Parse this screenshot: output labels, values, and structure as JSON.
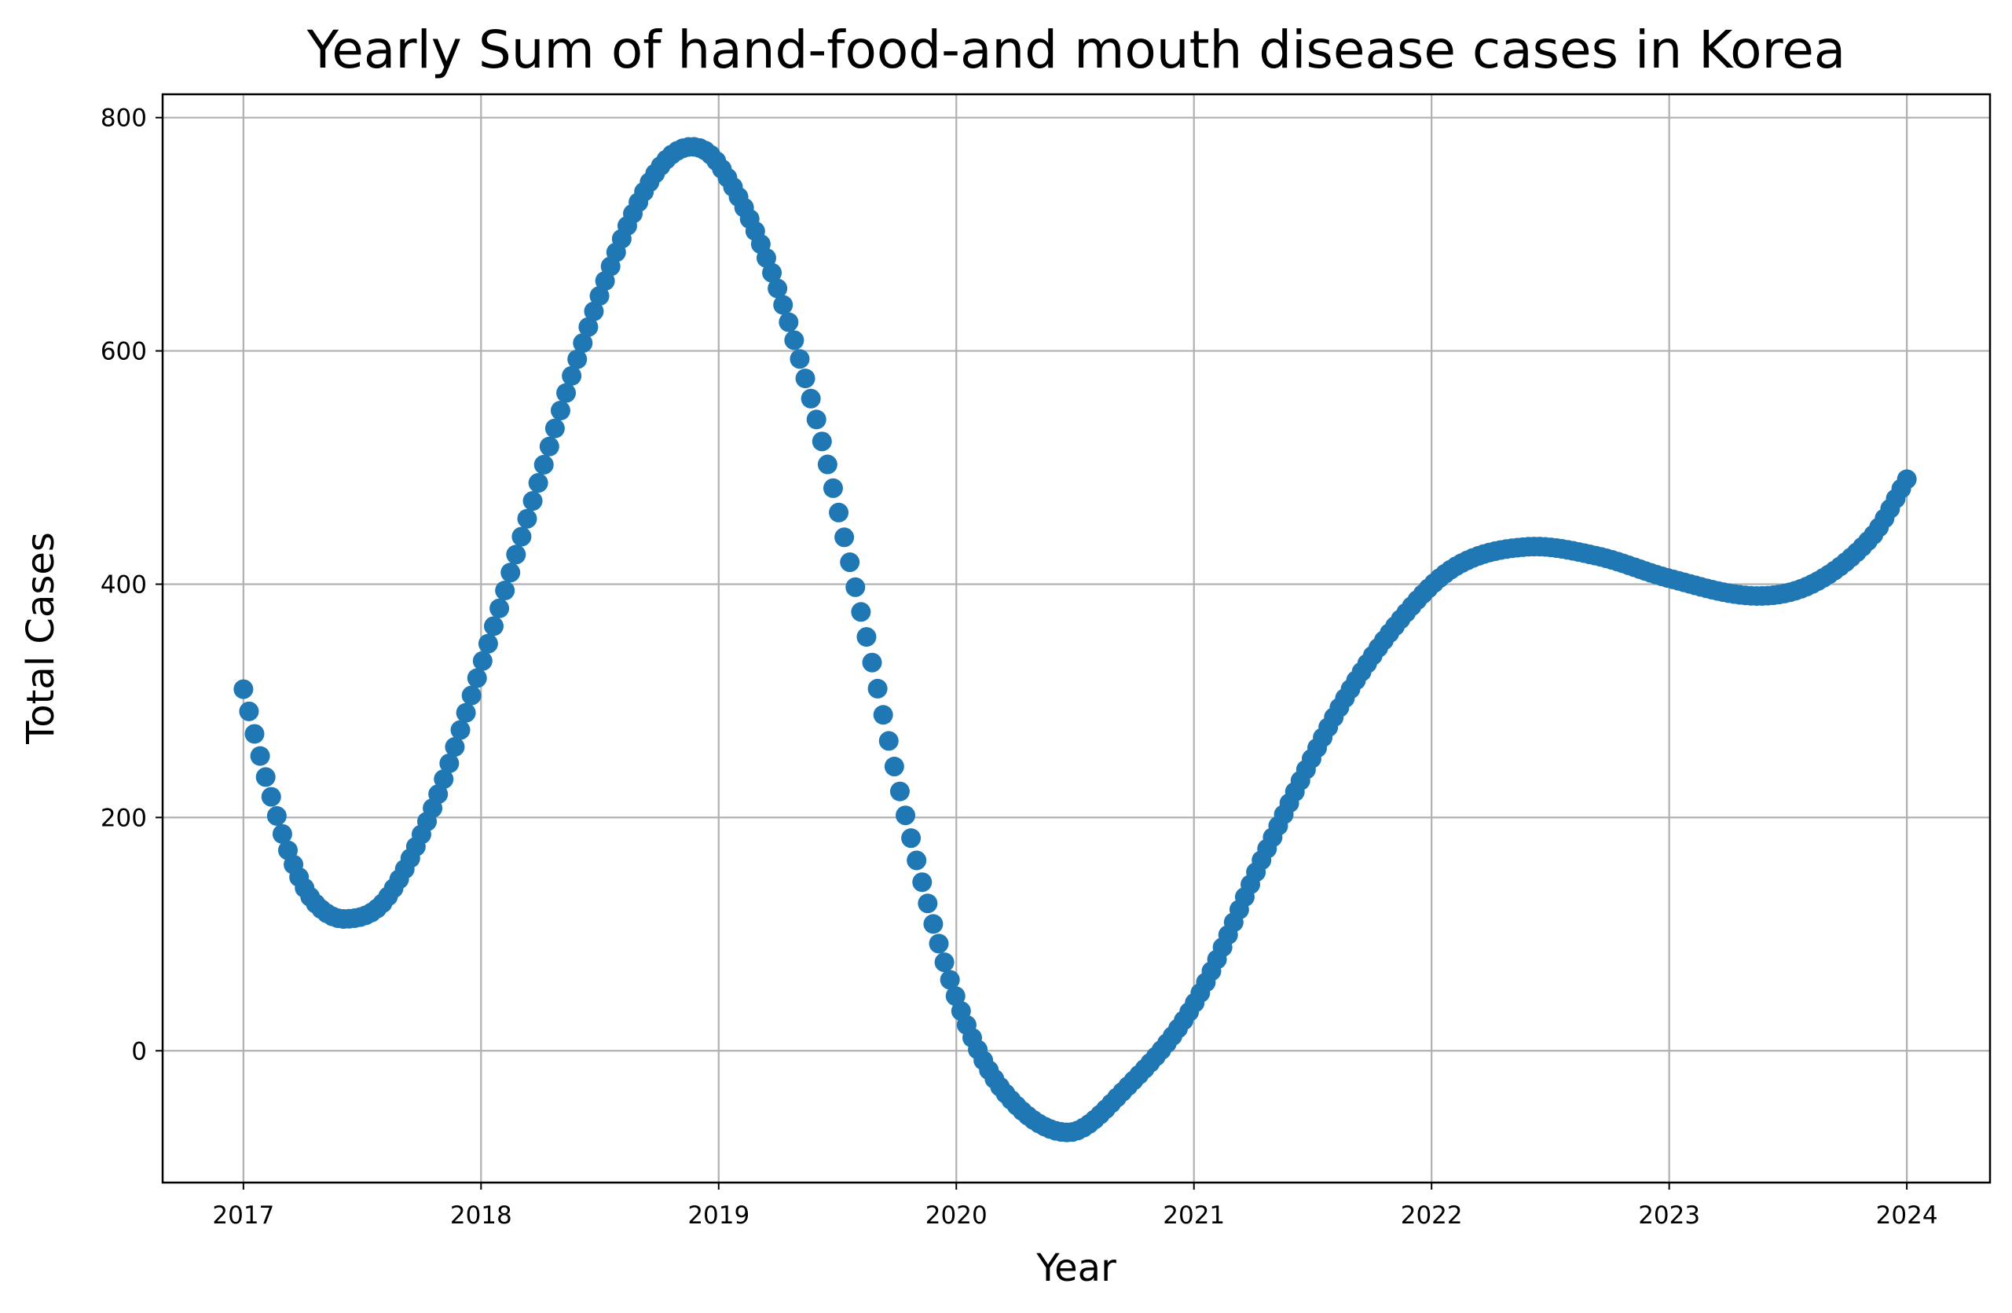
{
  "chart_data": {
    "type": "scatter",
    "title": "Yearly Sum of hand-food-and mouth disease cases in Korea",
    "xlabel": "Year",
    "ylabel": "Total Cases",
    "xlim": [
      2016.66,
      2024.35
    ],
    "ylim": [
      -113,
      820
    ],
    "x_ticks": [
      2017,
      2018,
      2019,
      2020,
      2021,
      2022,
      2023,
      2024
    ],
    "x_tick_labels": [
      "2017",
      "2018",
      "2019",
      "2020",
      "2021",
      "2022",
      "2023",
      "2024"
    ],
    "y_ticks": [
      0,
      200,
      400,
      600,
      800
    ],
    "y_tick_labels": [
      "0",
      "200",
      "400",
      "600",
      "800"
    ],
    "grid": true,
    "marker_color": "#1f77b4",
    "series": [
      {
        "x_start": 2017,
        "x_end": 2024,
        "point_count": 300,
        "curve_knots": [
          [
            2017.0,
            310
          ],
          [
            2017.1,
            230
          ],
          [
            2017.2,
            165
          ],
          [
            2017.3,
            127
          ],
          [
            2017.43,
            113
          ],
          [
            2017.6,
            130
          ],
          [
            2017.8,
            210
          ],
          [
            2018.0,
            330
          ],
          [
            2018.2,
            460
          ],
          [
            2018.4,
            590
          ],
          [
            2018.6,
            700
          ],
          [
            2018.75,
            757
          ],
          [
            2018.88,
            775
          ],
          [
            2019.0,
            760
          ],
          [
            2019.2,
            680
          ],
          [
            2019.4,
            550
          ],
          [
            2019.6,
            375
          ],
          [
            2019.8,
            190
          ],
          [
            2020.0,
            45
          ],
          [
            2020.2,
            -35
          ],
          [
            2020.47,
            -70
          ],
          [
            2020.7,
            -35
          ],
          [
            2021.0,
            40
          ],
          [
            2021.3,
            170
          ],
          [
            2021.6,
            290
          ],
          [
            2021.85,
            365
          ],
          [
            2022.1,
            415
          ],
          [
            2022.4,
            432
          ],
          [
            2022.7,
            424
          ],
          [
            2023.0,
            405
          ],
          [
            2023.35,
            390
          ],
          [
            2023.6,
            400
          ],
          [
            2023.85,
            440
          ],
          [
            2024.0,
            490
          ]
        ]
      }
    ]
  }
}
